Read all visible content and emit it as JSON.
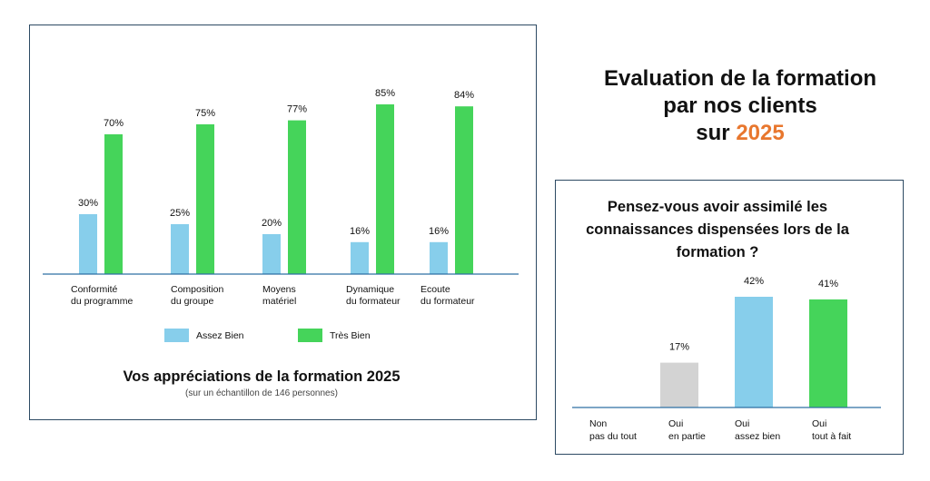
{
  "header": {
    "line1": "Evaluation de la formation",
    "line2": "par nos clients",
    "line3_prefix": "sur",
    "year": "2025"
  },
  "colors": {
    "assez_bien": "#87ceeb",
    "tres_bien": "#45d45a",
    "oui_en_partie": "#d3d3d3",
    "accent": "#e8772e",
    "axis": "#2d6fa3"
  },
  "chart_data": [
    {
      "type": "bar",
      "title": "Vos appréciations de la formation 2025",
      "subtitle": "(sur un échantillon de 146 personnes)",
      "categories": [
        [
          "Conformité",
          "du programme"
        ],
        [
          "Composition",
          "du groupe"
        ],
        [
          "Moyens",
          "matériel"
        ],
        [
          "Dynamique",
          "du formateur"
        ],
        [
          "Ecoute",
          "du formateur"
        ]
      ],
      "series": [
        {
          "name": "Assez Bien",
          "values": [
            30,
            25,
            20,
            16,
            16
          ],
          "labels": [
            "30%",
            "25%",
            "20%",
            "16%",
            "16%"
          ],
          "color": "#87ceeb"
        },
        {
          "name": "Très Bien",
          "values": [
            70,
            75,
            77,
            85,
            84
          ],
          "labels": [
            "70%",
            "75%",
            "77%",
            "85%",
            "84%"
          ],
          "color": "#45d45a"
        }
      ],
      "ylim": [
        0,
        100
      ],
      "legend_position": "bottom"
    },
    {
      "type": "bar",
      "title": [
        "Pensez-vous avoir assimilé les",
        "connaissances dispensées lors de la",
        "formation ?"
      ],
      "categories": [
        [
          "Non",
          "pas du tout"
        ],
        [
          "Oui",
          "en partie"
        ],
        [
          "Oui",
          "assez bien"
        ],
        [
          "Oui",
          "tout à fait"
        ]
      ],
      "values": [
        0,
        17,
        42,
        41
      ],
      "labels": [
        "",
        "17%",
        "42%",
        "41%"
      ],
      "colors": [
        "#d3d3d3",
        "#d3d3d3",
        "#87ceeb",
        "#45d45a"
      ],
      "ylim": [
        0,
        45
      ]
    }
  ]
}
